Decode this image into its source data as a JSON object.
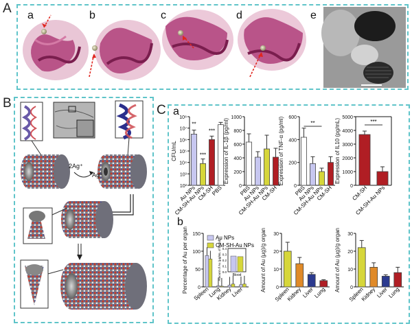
{
  "panels": {
    "A": {
      "label": "A",
      "sub": [
        "a",
        "b",
        "c",
        "d",
        "e"
      ]
    },
    "B": {
      "label": "B",
      "reaction_left": "2Ag⁺",
      "reaction_right": "Ag⁰"
    },
    "C": {
      "label": "C",
      "row_a": "a",
      "row_b": "b"
    }
  },
  "colors": {
    "dash": "#5fc4c9",
    "protein": "#b0407a",
    "au_np": "#c7c7f0",
    "cm_sh_au": "#d6d63a",
    "cm_sh": "#b01e24",
    "pbs": "#ffffff",
    "kidney_bar": "#e08a28",
    "liver_bar": "#2b3a8f",
    "lung_bar": "#b01e24"
  },
  "chart_data": [
    {
      "type": "bar",
      "id": "cfu",
      "ylabel": "CFU/mL",
      "log_scale": true,
      "ylim": [
        100,
        100000000
      ],
      "ytick_labels": [
        "10⁸",
        "10⁷",
        "10⁶",
        "10⁵",
        "10⁴",
        "10³",
        "10²"
      ],
      "categories": [
        "Au NPs",
        "CM-SH-Au NPs",
        "CM-SH",
        "PBS"
      ],
      "values": [
        3000000,
        8000,
        1000000,
        20000000
      ],
      "annotations": [
        "**",
        "***",
        "***",
        ""
      ]
    },
    {
      "type": "bar",
      "id": "il1b",
      "ylabel": "Expression of IL-1β (pg/ml)",
      "ylim": [
        0,
        1000
      ],
      "ytick_labels": [
        "0",
        "200",
        "400",
        "600",
        "800",
        "1000"
      ],
      "categories": [
        "PBS",
        "Au NPs",
        "CM-SH-Au NPs",
        "CM-SH"
      ],
      "values": [
        630,
        410,
        530,
        410
      ]
    },
    {
      "type": "bar",
      "id": "tnfa",
      "ylabel": "Expression of TNF-α (pg/ml)",
      "ylim": [
        0,
        600
      ],
      "ytick_labels": [
        "0",
        "200",
        "400",
        "600"
      ],
      "categories": [
        "PBS",
        "Au NPs",
        "CM-SH-Au NPs",
        "CM-SH"
      ],
      "values": [
        420,
        190,
        120,
        200
      ],
      "annotations": [
        "**"
      ]
    },
    {
      "type": "bar",
      "id": "il10",
      "ylabel": "Expression of IL10 (pg/mL)",
      "ylim": [
        0,
        5000
      ],
      "ytick_labels": [
        "0",
        "1000",
        "2000",
        "3000",
        "4000",
        "5000"
      ],
      "categories": [
        "CM-SH",
        "CM-SH-Au NPs"
      ],
      "values": [
        3700,
        1000
      ],
      "annotations": [
        "***"
      ]
    },
    {
      "type": "bar",
      "id": "organ_pct",
      "ylabel": "Percentage of Au per organ",
      "ylim": [
        0,
        150
      ],
      "ytick_labels": [
        "0",
        "50",
        "100",
        "150"
      ],
      "categories": [
        "Spleen",
        "Lung",
        "Kidney",
        "Liver"
      ],
      "series": [
        {
          "name": "Au NPs",
          "values": [
            88,
            3,
            5,
            6
          ]
        },
        {
          "name": "CM-SH-Au NPs",
          "values": [
            78,
            2,
            8,
            8
          ]
        }
      ],
      "inset": {
        "ylabel": "Amount of Au (μg/mL of blood)",
        "xlabel": "Blood",
        "ytick_labels": [
          "0.0",
          "0.1",
          "0.2",
          "0.3",
          "0.4"
        ],
        "ylim": [
          0,
          0.4
        ],
        "values": [
          0.27,
          0.26
        ]
      }
    },
    {
      "type": "bar",
      "id": "organ_amount_1",
      "ylabel": "Amount of Au (μg)/g organ",
      "ylim": [
        0,
        30
      ],
      "ytick_labels": [
        "0",
        "10",
        "20",
        "30"
      ],
      "categories": [
        "Spleen",
        "Kidney",
        "Liver",
        "Lung"
      ],
      "values": [
        20,
        13,
        7,
        3.5
      ]
    },
    {
      "type": "bar",
      "id": "organ_amount_2",
      "ylabel": "Amount of Au (μg)/g organ",
      "ylim": [
        0,
        30
      ],
      "ytick_labels": [
        "0",
        "10",
        "20",
        "30"
      ],
      "categories": [
        "Spleen",
        "Kidney",
        "Liver",
        "Lung"
      ],
      "values": [
        22,
        11,
        6,
        8
      ]
    }
  ]
}
